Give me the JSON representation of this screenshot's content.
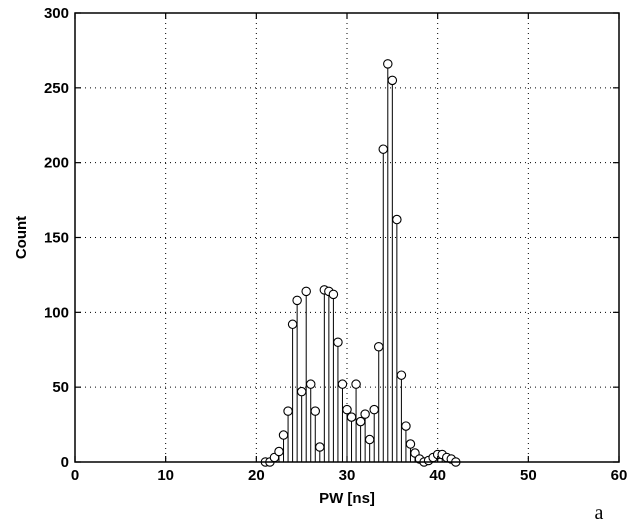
{
  "chart_data": {
    "type": "stem",
    "xlabel": "PW [ns]",
    "ylabel": "Count",
    "panel_label": "a",
    "xlim": [
      0,
      60
    ],
    "ylim": [
      0,
      300
    ],
    "xticks": [
      "0",
      "10",
      "20",
      "30",
      "40",
      "50",
      "60"
    ],
    "yticks": [
      "0",
      "50",
      "100",
      "150",
      "200",
      "250",
      "300"
    ],
    "grid": true,
    "x": [
      21.0,
      21.5,
      22.0,
      22.5,
      23.0,
      23.5,
      24.0,
      24.5,
      25.0,
      25.5,
      26.0,
      26.5,
      27.0,
      27.5,
      28.0,
      28.5,
      29.0,
      29.5,
      30.0,
      30.5,
      31.0,
      31.5,
      32.0,
      32.5,
      33.0,
      33.5,
      34.0,
      34.5,
      35.0,
      35.5,
      36.0,
      36.5,
      37.0,
      37.5,
      38.0,
      38.5,
      39.0,
      39.5,
      40.0,
      40.5,
      41.0,
      41.5,
      42.0
    ],
    "y": [
      0,
      0,
      3,
      7,
      18,
      34,
      92,
      108,
      47,
      114,
      52,
      34,
      10,
      115,
      114,
      112,
      80,
      52,
      35,
      30,
      52,
      27,
      32,
      15,
      35,
      77,
      209,
      266,
      255,
      162,
      58,
      24,
      12,
      6,
      2,
      0,
      1,
      3,
      5,
      5,
      3,
      2,
      0
    ]
  }
}
